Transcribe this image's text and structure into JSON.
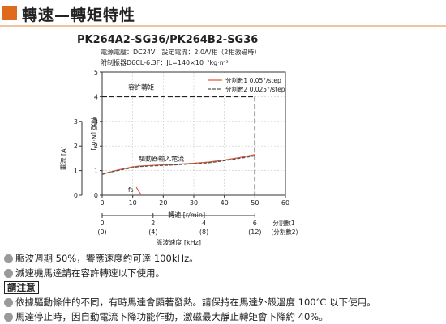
{
  "section_title": "轉速—轉矩特性",
  "chart_data": {
    "type": "line",
    "title": "PK264A2-SG36/PK264B2-SG36",
    "conditions": [
      "電源電壓：DC24V　設定電流：2.0A/相（2相激磁時）",
      "附制振器D6CL-6.3F：JL=140×10⁻⁷kg·m²"
    ],
    "xlabel": "轉速 [r/min]",
    "x_ticks": [
      0,
      10,
      20,
      30,
      40,
      50,
      60
    ],
    "xlim": [
      0,
      60
    ],
    "ylabel_left": "轉矩 [N·m]",
    "y_ticks_left": [
      0,
      1,
      2,
      3,
      4,
      5
    ],
    "ylim": [
      0,
      5
    ],
    "ylabel_current": "電流 [A]",
    "y_ticks_current": [
      0,
      1,
      2,
      3
    ],
    "secondary_axis": {
      "label": "脈波速度 [kHz]",
      "ticks": [
        {
          "top": "0",
          "bottom": "(0)",
          "rpm": 0
        },
        {
          "top": "2",
          "bottom": "(4)",
          "rpm": 16.67
        },
        {
          "top": "4",
          "bottom": "(8)",
          "rpm": 33.33
        },
        {
          "top": "6",
          "bottom": "(12)",
          "rpm": 50
        }
      ],
      "legend_top": "分割數1",
      "legend_bottom": "(分割數2)"
    },
    "allowable_torque": {
      "label": "容許轉矩",
      "value": 4,
      "x_end": 50
    },
    "speed_limit_rpm": 50,
    "series": [
      {
        "name": "分割數1  0.05°/step",
        "color": "#e05a3a",
        "dash": "solid",
        "x": [
          0,
          2,
          5,
          8,
          10,
          12,
          15,
          18,
          20,
          25,
          30,
          35,
          40,
          45,
          50
        ],
        "y": [
          0.85,
          0.92,
          1.02,
          1.1,
          1.15,
          1.18,
          1.2,
          1.22,
          1.23,
          1.26,
          1.3,
          1.35,
          1.43,
          1.53,
          1.65
        ]
      },
      {
        "name": "分割數2  0.025°/step",
        "color": "#555555",
        "dash": "dashed",
        "x": [
          0,
          2,
          5,
          8,
          10,
          12,
          15,
          18,
          20,
          25,
          30,
          35,
          40,
          45,
          50
        ],
        "y": [
          0.85,
          0.92,
          1.0,
          1.07,
          1.12,
          1.16,
          1.18,
          1.2,
          1.21,
          1.24,
          1.28,
          1.32,
          1.4,
          1.5,
          1.6
        ]
      }
    ],
    "annotations": {
      "current_label": "驅動器輸入電流",
      "fs_label": "fs"
    },
    "grid": true,
    "legend_position": "top-right"
  },
  "notes": [
    "脈波週期 50%，響應速度約可達 100kHz。",
    "減速機馬達請在容許轉速以下使用。"
  ],
  "caution_label": "請注意",
  "caution_notes": [
    "依據驅動條件的不同，有時馬達會顯著發熱。請保持在馬達外殼溫度 100℃ 以下使用。",
    "馬達停止時，因自動電流下降功能作動，激磁最大靜止轉矩會下降約 40%。"
  ]
}
